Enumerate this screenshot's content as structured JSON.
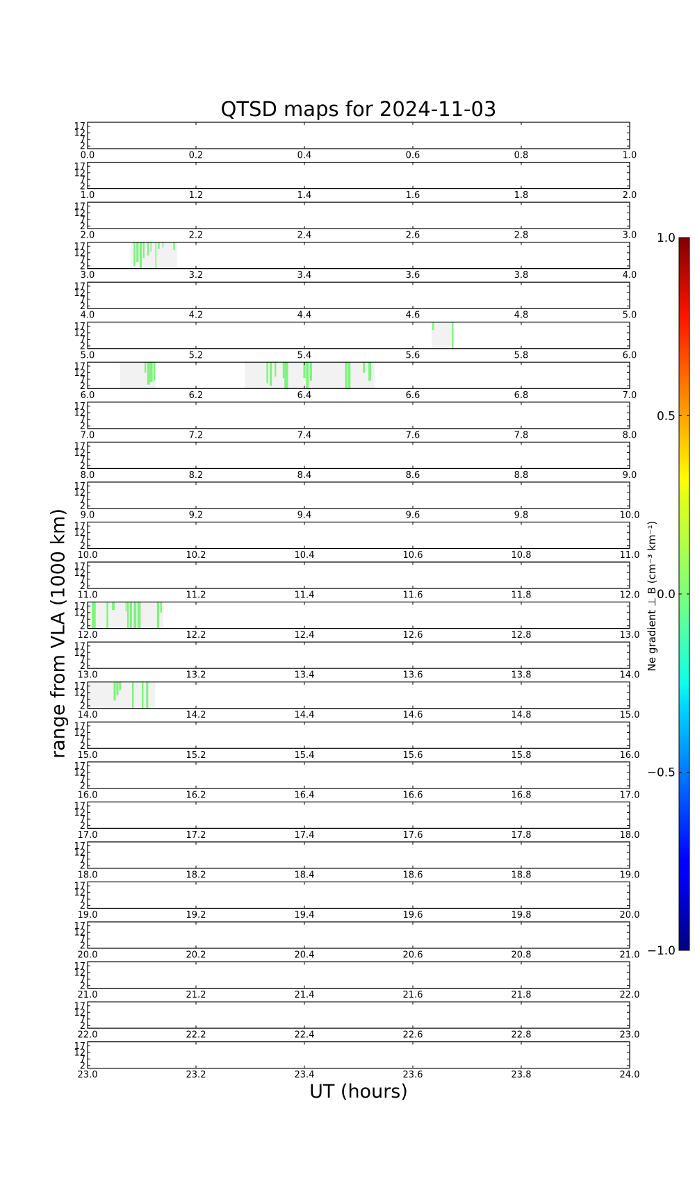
{
  "chart_data": {
    "type": "heatmap",
    "title": "QTSD maps for 2024-11-03",
    "xlabel": "UT (hours)",
    "ylabel": "range from VLA (1000 km)",
    "yticks": [
      "17",
      "12",
      "7",
      "2"
    ],
    "ylim": [
      0,
      20
    ],
    "colorbar": {
      "label": "Ne gradient ⊥ B (cm⁻³ km⁻¹)",
      "range": [
        -1.0,
        1.0
      ],
      "ticks": [
        "1.0",
        "0.5",
        "0.0",
        "−0.5",
        "−1.0"
      ],
      "colormap": "jet"
    },
    "colors": {
      "coverage": "#f2f2f2",
      "feature": "#7cf47c",
      "axis": "#000000"
    },
    "panels": [
      {
        "start": 0,
        "xticks": [
          "0.0",
          "0.2",
          "0.4",
          "0.6",
          "0.8",
          "1.0"
        ],
        "coverage": [],
        "features": []
      },
      {
        "start": 1,
        "xticks": [
          "1.0",
          "1.2",
          "1.4",
          "1.6",
          "1.8",
          "2.0"
        ],
        "coverage": [],
        "features": []
      },
      {
        "start": 2,
        "xticks": [
          "2.0",
          "2.2",
          "2.4",
          "2.6",
          "2.8",
          "3.0"
        ],
        "coverage": [],
        "features": []
      },
      {
        "start": 3,
        "xticks": [
          "3.0",
          "3.2",
          "3.4",
          "3.6",
          "3.8",
          "4.0"
        ],
        "coverage": [
          [
            3.08,
            3.165
          ]
        ],
        "features": [
          [
            3.085,
            3.088,
            2
          ],
          [
            3.09,
            3.094,
            5
          ],
          [
            3.096,
            3.1,
            0
          ],
          [
            3.102,
            3.105,
            8
          ],
          [
            3.11,
            3.113,
            10
          ],
          [
            3.116,
            3.118,
            13
          ],
          [
            3.125,
            3.127,
            0
          ],
          [
            3.13,
            3.133,
            15
          ],
          [
            3.138,
            3.14,
            16
          ],
          [
            3.158,
            3.161,
            14
          ]
        ]
      },
      {
        "start": 4,
        "xticks": [
          "4.0",
          "4.2",
          "4.4",
          "4.6",
          "4.8",
          "5.0"
        ],
        "coverage": [],
        "features": []
      },
      {
        "start": 5,
        "xticks": [
          "5.0",
          "5.2",
          "5.4",
          "5.6",
          "5.8",
          "6.0"
        ],
        "coverage": [
          [
            5.635,
            5.675
          ]
        ],
        "features": [
          [
            5.636,
            5.639,
            14
          ],
          [
            5.672,
            5.675,
            0
          ]
        ]
      },
      {
        "start": 6,
        "xticks": [
          "6.0",
          "6.2",
          "6.4",
          "6.6",
          "6.8",
          "7.0"
        ],
        "coverage": [
          [
            6.06,
            6.125
          ],
          [
            6.29,
            6.53
          ]
        ],
        "features": [
          [
            6.105,
            6.108,
            12
          ],
          [
            6.11,
            6.115,
            3
          ],
          [
            6.115,
            6.12,
            5
          ],
          [
            6.122,
            6.125,
            6
          ],
          [
            6.33,
            6.333,
            4
          ],
          [
            6.336,
            6.34,
            2
          ],
          [
            6.345,
            6.348,
            9
          ],
          [
            6.36,
            6.363,
            8
          ],
          [
            6.363,
            6.37,
            0
          ],
          [
            6.398,
            6.402,
            8
          ],
          [
            6.403,
            6.408,
            0
          ],
          [
            6.41,
            6.414,
            6
          ],
          [
            6.475,
            6.479,
            0
          ],
          [
            6.48,
            6.485,
            0
          ],
          [
            6.508,
            6.512,
            12
          ],
          [
            6.518,
            6.523,
            6
          ]
        ]
      },
      {
        "start": 7,
        "xticks": [
          "7.0",
          "7.2",
          "7.4",
          "7.6",
          "7.8",
          "8.0"
        ],
        "coverage": [],
        "features": []
      },
      {
        "start": 8,
        "xticks": [
          "8.0",
          "8.2",
          "8.4",
          "8.6",
          "8.8",
          "9.0"
        ],
        "coverage": [],
        "features": []
      },
      {
        "start": 9,
        "xticks": [
          "9.0",
          "9.2",
          "9.4",
          "9.6",
          "9.8",
          "10.0"
        ],
        "coverage": [],
        "features": []
      },
      {
        "start": 10,
        "xticks": [
          "10.0",
          "10.2",
          "10.4",
          "10.6",
          "10.8",
          "11.0"
        ],
        "coverage": [],
        "features": []
      },
      {
        "start": 11,
        "xticks": [
          "11.0",
          "11.2",
          "11.4",
          "11.6",
          "11.8",
          "12.0"
        ],
        "coverage": [],
        "features": []
      },
      {
        "start": 12,
        "xticks": [
          "12.0",
          "12.2",
          "12.4",
          "12.6",
          "12.8",
          "13.0"
        ],
        "coverage": [
          [
            12.0,
            12.14
          ]
        ],
        "features": [
          [
            12.008,
            12.015,
            0
          ],
          [
            12.035,
            12.038,
            0
          ],
          [
            12.045,
            12.05,
            14
          ],
          [
            12.07,
            12.072,
            13
          ],
          [
            12.073,
            12.076,
            0
          ],
          [
            12.078,
            12.082,
            0
          ],
          [
            12.085,
            12.09,
            0
          ],
          [
            12.092,
            12.098,
            0
          ],
          [
            12.128,
            12.132,
            0
          ],
          [
            12.134,
            12.137,
            12
          ]
        ]
      },
      {
        "start": 13,
        "xticks": [
          "13.0",
          "13.2",
          "13.4",
          "13.6",
          "13.8",
          "14.0"
        ],
        "coverage": [],
        "features": []
      },
      {
        "start": 14,
        "xticks": [
          "14.0",
          "14.2",
          "14.4",
          "14.6",
          "14.8",
          "15.0"
        ],
        "coverage": [
          [
            14.0,
            14.125
          ]
        ],
        "features": [
          [
            14.048,
            14.052,
            6
          ],
          [
            14.053,
            14.057,
            10
          ],
          [
            14.058,
            14.062,
            14
          ],
          [
            14.082,
            14.085,
            0
          ],
          [
            14.1,
            14.103,
            0
          ],
          [
            14.108,
            14.112,
            0
          ]
        ]
      },
      {
        "start": 15,
        "xticks": [
          "15.0",
          "15.2",
          "15.4",
          "15.6",
          "15.8",
          "16.0"
        ],
        "coverage": [],
        "features": []
      },
      {
        "start": 16,
        "xticks": [
          "16.0",
          "16.2",
          "16.4",
          "16.6",
          "16.8",
          "17.0"
        ],
        "coverage": [],
        "features": []
      },
      {
        "start": 17,
        "xticks": [
          "17.0",
          "17.2",
          "17.4",
          "17.6",
          "17.8",
          "18.0"
        ],
        "coverage": [],
        "features": []
      },
      {
        "start": 18,
        "xticks": [
          "18.0",
          "18.2",
          "18.4",
          "18.6",
          "18.8",
          "19.0"
        ],
        "coverage": [],
        "features": []
      },
      {
        "start": 19,
        "xticks": [
          "19.0",
          "19.2",
          "19.4",
          "19.6",
          "19.8",
          "20.0"
        ],
        "coverage": [],
        "features": []
      },
      {
        "start": 20,
        "xticks": [
          "20.0",
          "20.2",
          "20.4",
          "20.6",
          "20.8",
          "21.0"
        ],
        "coverage": [],
        "features": []
      },
      {
        "start": 21,
        "xticks": [
          "21.0",
          "21.2",
          "21.4",
          "21.6",
          "21.8",
          "22.0"
        ],
        "coverage": [],
        "features": []
      },
      {
        "start": 22,
        "xticks": [
          "22.0",
          "22.2",
          "22.4",
          "22.6",
          "22.8",
          "23.0"
        ],
        "coverage": [],
        "features": []
      },
      {
        "start": 23,
        "xticks": [
          "23.0",
          "23.2",
          "23.4",
          "23.6",
          "23.8",
          "24.0"
        ],
        "coverage": [],
        "features": []
      }
    ]
  }
}
